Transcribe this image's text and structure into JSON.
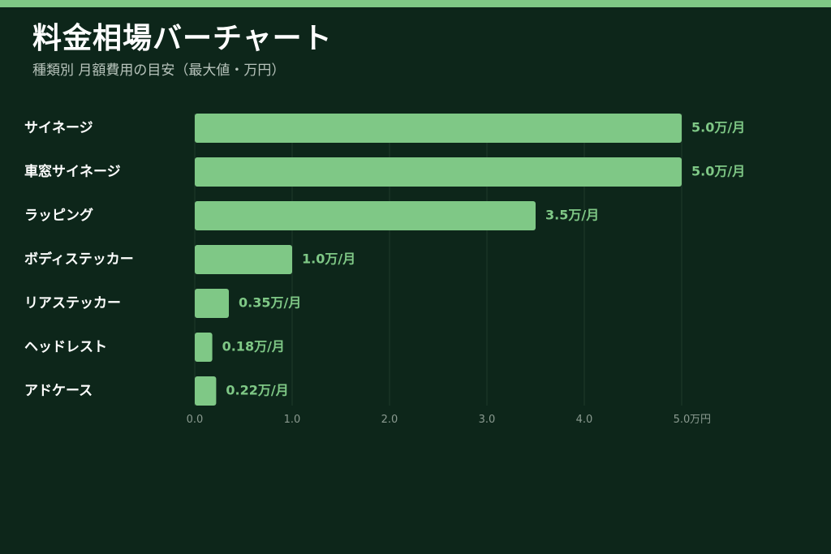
{
  "title": "料金相場バーチャート",
  "subtitle": "種類別 月額費用の目安（最大値・万円）",
  "colors": {
    "accent": "#7fc886",
    "background": "#0d261a"
  },
  "chart_data": {
    "type": "bar",
    "orientation": "horizontal",
    "categories": [
      "サイネージ",
      "車窓サイネージ",
      "ラッピング",
      "ボディステッカー",
      "リアステッカー",
      "ヘッドレスト",
      "アドケース"
    ],
    "values": [
      5.0,
      5.0,
      3.5,
      1.0,
      0.35,
      0.18,
      0.22
    ],
    "value_labels": [
      "5.0万/月",
      "5.0万/月",
      "3.5万/月",
      "1.0万/月",
      "0.35万/月",
      "0.18万/月",
      "0.22万/月"
    ],
    "xlim": [
      0,
      5
    ],
    "xticks": [
      "0.0",
      "1.0",
      "2.0",
      "3.0",
      "4.0",
      "5.0"
    ],
    "x_unit": "万円",
    "grid": true
  }
}
